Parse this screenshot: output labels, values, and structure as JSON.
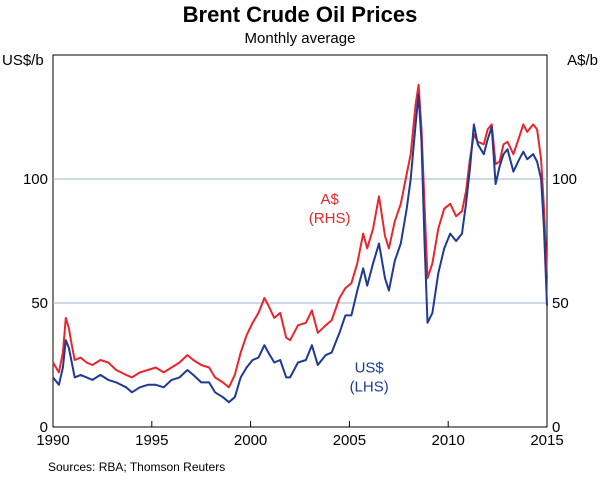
{
  "chart_data": {
    "type": "line",
    "title": "Brent Crude Oil Prices",
    "subtitle": "Monthly average",
    "ylabel_left": "US$/b",
    "ylabel_right": "A$/b",
    "source": "Sources:  RBA; Thomson Reuters",
    "xlim": [
      1990,
      2015
    ],
    "ylim": [
      0,
      150
    ],
    "x_ticks": [
      "1990",
      "1995",
      "2000",
      "2005",
      "2010",
      "2015"
    ],
    "y_ticks": [
      "0",
      "50",
      "100"
    ],
    "grid": true,
    "series": [
      {
        "name": "A$ (RHS)",
        "label_lines": [
          "A$",
          "(RHS)"
        ],
        "color": "#e8262b",
        "axis": "right",
        "points": [
          [
            1990.0,
            26
          ],
          [
            1990.3,
            22
          ],
          [
            1990.5,
            30
          ],
          [
            1990.65,
            44
          ],
          [
            1990.8,
            40
          ],
          [
            1990.95,
            33
          ],
          [
            1991.1,
            27
          ],
          [
            1991.4,
            28
          ],
          [
            1991.7,
            26
          ],
          [
            1992.0,
            25
          ],
          [
            1992.4,
            27
          ],
          [
            1992.8,
            26
          ],
          [
            1993.2,
            23
          ],
          [
            1993.7,
            21
          ],
          [
            1994.0,
            20
          ],
          [
            1994.4,
            22
          ],
          [
            1994.8,
            23
          ],
          [
            1995.2,
            24
          ],
          [
            1995.6,
            22
          ],
          [
            1996.0,
            24
          ],
          [
            1996.4,
            26
          ],
          [
            1996.8,
            29
          ],
          [
            1997.1,
            27
          ],
          [
            1997.5,
            25
          ],
          [
            1997.9,
            24
          ],
          [
            1998.2,
            20
          ],
          [
            1998.6,
            18
          ],
          [
            1998.9,
            16
          ],
          [
            1999.2,
            21
          ],
          [
            1999.5,
            30
          ],
          [
            1999.8,
            37
          ],
          [
            2000.1,
            42
          ],
          [
            2000.4,
            46
          ],
          [
            2000.7,
            52
          ],
          [
            2000.9,
            49
          ],
          [
            2001.2,
            44
          ],
          [
            2001.5,
            46
          ],
          [
            2001.8,
            36
          ],
          [
            2002.0,
            35
          ],
          [
            2002.4,
            41
          ],
          [
            2002.8,
            42
          ],
          [
            2003.1,
            47
          ],
          [
            2003.4,
            38
          ],
          [
            2003.8,
            41
          ],
          [
            2004.1,
            43
          ],
          [
            2004.5,
            52
          ],
          [
            2004.8,
            56
          ],
          [
            2005.1,
            58
          ],
          [
            2005.4,
            66
          ],
          [
            2005.7,
            78
          ],
          [
            2005.9,
            72
          ],
          [
            2006.2,
            80
          ],
          [
            2006.5,
            93
          ],
          [
            2006.8,
            77
          ],
          [
            2007.0,
            72
          ],
          [
            2007.3,
            83
          ],
          [
            2007.6,
            90
          ],
          [
            2007.9,
            102
          ],
          [
            2008.1,
            110
          ],
          [
            2008.35,
            130
          ],
          [
            2008.5,
            138
          ],
          [
            2008.65,
            120
          ],
          [
            2008.8,
            90
          ],
          [
            2008.95,
            60
          ],
          [
            2009.2,
            66
          ],
          [
            2009.5,
            80
          ],
          [
            2009.8,
            88
          ],
          [
            2010.1,
            90
          ],
          [
            2010.4,
            85
          ],
          [
            2010.7,
            87
          ],
          [
            2010.9,
            95
          ],
          [
            2011.1,
            108
          ],
          [
            2011.3,
            118
          ],
          [
            2011.5,
            115
          ],
          [
            2011.8,
            114
          ],
          [
            2012.0,
            120
          ],
          [
            2012.2,
            122
          ],
          [
            2012.4,
            106
          ],
          [
            2012.6,
            107
          ],
          [
            2012.8,
            114
          ],
          [
            2013.0,
            115
          ],
          [
            2013.3,
            110
          ],
          [
            2013.6,
            117
          ],
          [
            2013.8,
            122
          ],
          [
            2014.0,
            119
          ],
          [
            2014.3,
            122
          ],
          [
            2014.5,
            120
          ],
          [
            2014.7,
            108
          ],
          [
            2014.85,
            88
          ],
          [
            2015.0,
            60
          ]
        ]
      },
      {
        "name": "US$ (LHS)",
        "label_lines": [
          "US$",
          "(LHS)"
        ],
        "color": "#1f3a93",
        "axis": "left",
        "points": [
          [
            1990.0,
            20
          ],
          [
            1990.3,
            17
          ],
          [
            1990.5,
            24
          ],
          [
            1990.65,
            35
          ],
          [
            1990.8,
            32
          ],
          [
            1990.95,
            26
          ],
          [
            1991.1,
            20
          ],
          [
            1991.4,
            21
          ],
          [
            1991.7,
            20
          ],
          [
            1992.0,
            19
          ],
          [
            1992.4,
            21
          ],
          [
            1992.8,
            19
          ],
          [
            1993.2,
            18
          ],
          [
            1993.7,
            16
          ],
          [
            1994.0,
            14
          ],
          [
            1994.4,
            16
          ],
          [
            1994.8,
            17
          ],
          [
            1995.2,
            17
          ],
          [
            1995.6,
            16
          ],
          [
            1996.0,
            19
          ],
          [
            1996.4,
            20
          ],
          [
            1996.8,
            23
          ],
          [
            1997.1,
            21
          ],
          [
            1997.5,
            18
          ],
          [
            1997.9,
            18
          ],
          [
            1998.2,
            14
          ],
          [
            1998.6,
            12
          ],
          [
            1998.9,
            10
          ],
          [
            1999.2,
            12
          ],
          [
            1999.5,
            20
          ],
          [
            1999.8,
            24
          ],
          [
            2000.1,
            27
          ],
          [
            2000.4,
            28
          ],
          [
            2000.7,
            33
          ],
          [
            2000.9,
            30
          ],
          [
            2001.2,
            26
          ],
          [
            2001.5,
            27
          ],
          [
            2001.8,
            20
          ],
          [
            2002.0,
            20
          ],
          [
            2002.4,
            26
          ],
          [
            2002.8,
            27
          ],
          [
            2003.1,
            33
          ],
          [
            2003.4,
            25
          ],
          [
            2003.8,
            29
          ],
          [
            2004.1,
            30
          ],
          [
            2004.5,
            38
          ],
          [
            2004.8,
            45
          ],
          [
            2005.1,
            45
          ],
          [
            2005.4,
            55
          ],
          [
            2005.7,
            64
          ],
          [
            2005.9,
            57
          ],
          [
            2006.2,
            66
          ],
          [
            2006.5,
            74
          ],
          [
            2006.8,
            60
          ],
          [
            2007.0,
            55
          ],
          [
            2007.3,
            67
          ],
          [
            2007.6,
            74
          ],
          [
            2007.9,
            88
          ],
          [
            2008.1,
            100
          ],
          [
            2008.35,
            122
          ],
          [
            2008.5,
            134
          ],
          [
            2008.65,
            115
          ],
          [
            2008.8,
            75
          ],
          [
            2008.95,
            42
          ],
          [
            2009.2,
            46
          ],
          [
            2009.5,
            62
          ],
          [
            2009.8,
            72
          ],
          [
            2010.1,
            78
          ],
          [
            2010.4,
            75
          ],
          [
            2010.7,
            78
          ],
          [
            2010.9,
            90
          ],
          [
            2011.1,
            104
          ],
          [
            2011.3,
            122
          ],
          [
            2011.5,
            114
          ],
          [
            2011.8,
            110
          ],
          [
            2012.0,
            116
          ],
          [
            2012.2,
            121
          ],
          [
            2012.4,
            98
          ],
          [
            2012.6,
            105
          ],
          [
            2012.8,
            110
          ],
          [
            2013.0,
            112
          ],
          [
            2013.3,
            103
          ],
          [
            2013.6,
            108
          ],
          [
            2013.8,
            111
          ],
          [
            2014.0,
            108
          ],
          [
            2014.3,
            110
          ],
          [
            2014.5,
            107
          ],
          [
            2014.7,
            100
          ],
          [
            2014.85,
            80
          ],
          [
            2015.0,
            49
          ]
        ]
      }
    ]
  }
}
